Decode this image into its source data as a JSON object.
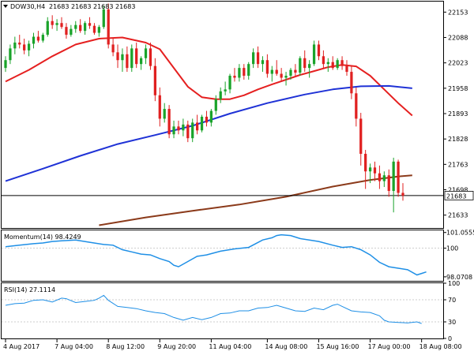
{
  "header": {
    "symbol_label": "DOW30,H4",
    "ohlc": "21683 21683 21683 21683"
  },
  "last_price_label": "21683",
  "colors": {
    "up_candle": "#1aa32a",
    "down_candle": "#e02020",
    "sma20": "#e52020",
    "sma100": "#1f32d6",
    "sma200": "#8b3a1a",
    "oscillator": "#1e8fe6",
    "grid": "#bdbdbd",
    "axis": "#000000",
    "price_line": "#000000",
    "background": "#ffffff"
  },
  "chart_data": [
    {
      "type": "candlestick",
      "panel": "price",
      "title": "DOW30,H4",
      "ylim": [
        21600,
        22180
      ],
      "yticks": [
        22153,
        22088,
        22023,
        21958,
        21893,
        21828,
        21763,
        21698,
        21633
      ],
      "last_price": 21683,
      "xticks": [
        {
          "label": "4 Aug 2017",
          "index": 0
        },
        {
          "label": "7 Aug 04:00",
          "index": 11
        },
        {
          "label": "8 Aug 12:00",
          "index": 22
        },
        {
          "label": "9 Aug 20:00",
          "index": 33
        },
        {
          "label": "11 Aug 04:00",
          "index": 44
        },
        {
          "label": "14 Aug 08:00",
          "index": 56
        },
        {
          "label": "15 Aug 16:00",
          "index": 67
        },
        {
          "label": "17 Aug 00:00",
          "index": 78
        },
        {
          "label": "18 Aug 08:00",
          "index": 89
        }
      ],
      "candles": [
        [
          22010,
          22040,
          22000,
          22030
        ],
        [
          22030,
          22070,
          22020,
          22060
        ],
        [
          22060,
          22090,
          22045,
          22075
        ],
        [
          22075,
          22095,
          22060,
          22070
        ],
        [
          22070,
          22085,
          22045,
          22055
        ],
        [
          22055,
          22080,
          22040,
          22072
        ],
        [
          22072,
          22100,
          22060,
          22090
        ],
        [
          22090,
          22105,
          22075,
          22080
        ],
        [
          22080,
          22100,
          22075,
          22095
        ],
        [
          22095,
          22140,
          22090,
          22130
        ],
        [
          22130,
          22145,
          22110,
          22120
        ],
        [
          22120,
          22135,
          22105,
          22125
        ],
        [
          22125,
          22140,
          22110,
          22115
        ],
        [
          22115,
          22125,
          22085,
          22095
        ],
        [
          22095,
          22120,
          22090,
          22110
        ],
        [
          22110,
          22130,
          22100,
          22120
        ],
        [
          22120,
          22135,
          22100,
          22105
        ],
        [
          22105,
          22130,
          22095,
          22125
        ],
        [
          22125,
          22140,
          22110,
          22118
        ],
        [
          22118,
          22125,
          22095,
          22100
        ],
        [
          22100,
          22120,
          22090,
          22115
        ],
        [
          22115,
          22170,
          22110,
          22160
        ],
        [
          22160,
          22175,
          22060,
          22070
        ],
        [
          22070,
          22085,
          22040,
          22050
        ],
        [
          22050,
          22070,
          22010,
          22030
        ],
        [
          22030,
          22060,
          22000,
          22045
        ],
        [
          22045,
          22065,
          22000,
          22010
        ],
        [
          22010,
          22070,
          22000,
          22060
        ],
        [
          22060,
          22075,
          22010,
          22020
        ],
        [
          22020,
          22040,
          22005,
          22035
        ],
        [
          22035,
          22070,
          22020,
          22060
        ],
        [
          22060,
          22075,
          22005,
          22015
        ],
        [
          22015,
          22035,
          21925,
          21940
        ],
        [
          21940,
          21960,
          21860,
          21880
        ],
        [
          21880,
          21920,
          21870,
          21905
        ],
        [
          21905,
          21915,
          21830,
          21840
        ],
        [
          21840,
          21875,
          21830,
          21860
        ],
        [
          21860,
          21875,
          21840,
          21850
        ],
        [
          21850,
          21880,
          21835,
          21865
        ],
        [
          21865,
          21875,
          21820,
          21830
        ],
        [
          21830,
          21880,
          21820,
          21870
        ],
        [
          21870,
          21890,
          21840,
          21850
        ],
        [
          21850,
          21890,
          21845,
          21885
        ],
        [
          21885,
          21900,
          21860,
          21870
        ],
        [
          21870,
          21905,
          21860,
          21900
        ],
        [
          21900,
          21940,
          21890,
          21930
        ],
        [
          21930,
          21960,
          21920,
          21950
        ],
        [
          21950,
          21975,
          21940,
          21955
        ],
        [
          21955,
          21995,
          21945,
          21990
        ],
        [
          21990,
          22010,
          21975,
          21985
        ],
        [
          21985,
          22020,
          21975,
          22010
        ],
        [
          22010,
          22020,
          21980,
          21990
        ],
        [
          21990,
          22025,
          21980,
          22020
        ],
        [
          22020,
          22060,
          22010,
          22050
        ],
        [
          22050,
          22065,
          22010,
          22020
        ],
        [
          22020,
          22040,
          22000,
          22030
        ],
        [
          22030,
          22045,
          21985,
          21995
        ],
        [
          21995,
          22015,
          21975,
          22005
        ],
        [
          22005,
          22030,
          21990,
          21995
        ],
        [
          21995,
          22010,
          21975,
          21985
        ],
        [
          21985,
          22000,
          21965,
          21990
        ],
        [
          21990,
          22010,
          21980,
          22005
        ],
        [
          22005,
          22020,
          21990,
          21998
        ],
        [
          21998,
          22040,
          21990,
          22035
        ],
        [
          22035,
          22055,
          22000,
          22010
        ],
        [
          22010,
          22030,
          21985,
          22020
        ],
        [
          22020,
          22080,
          22015,
          22070
        ],
        [
          22070,
          22080,
          22030,
          22040
        ],
        [
          22040,
          22055,
          22010,
          22020
        ],
        [
          22020,
          22035,
          22000,
          22025
        ],
        [
          22025,
          22040,
          22005,
          22010
        ],
        [
          22010,
          22035,
          22005,
          22030
        ],
        [
          22030,
          22040,
          22005,
          22015
        ],
        [
          22015,
          22030,
          21990,
          22000
        ],
        [
          22000,
          22015,
          21930,
          21945
        ],
        [
          21945,
          21960,
          21860,
          21880
        ],
        [
          21880,
          21895,
          21760,
          21790
        ],
        [
          21790,
          21800,
          21700,
          21745
        ],
        [
          21745,
          21765,
          21715,
          21755
        ],
        [
          21755,
          21770,
          21720,
          21740
        ],
        [
          21740,
          21760,
          21700,
          21720
        ],
        [
          21720,
          21745,
          21705,
          21735
        ],
        [
          21735,
          21750,
          21680,
          21695
        ],
        [
          21695,
          21780,
          21640,
          21770
        ],
        [
          21770,
          21775,
          21680,
          21690
        ],
        [
          21690,
          21715,
          21670,
          21683
        ]
      ],
      "indicators": [
        {
          "name": "SMA 20",
          "color_key": "sma20",
          "values": [
            [
              0,
              21975
            ],
            [
              5,
              22005
            ],
            [
              10,
              22040
            ],
            [
              15,
              22070
            ],
            [
              20,
              22085
            ],
            [
              25,
              22088
            ],
            [
              30,
              22075
            ],
            [
              33,
              22058
            ],
            [
              36,
              22010
            ],
            [
              39,
              21962
            ],
            [
              42,
              21935
            ],
            [
              45,
              21930
            ],
            [
              48,
              21930
            ],
            [
              51,
              21940
            ],
            [
              54,
              21955
            ],
            [
              57,
              21968
            ],
            [
              60,
              21980
            ],
            [
              63,
              21992
            ],
            [
              66,
              22002
            ],
            [
              69,
              22012
            ],
            [
              72,
              22018
            ],
            [
              75,
              22014
            ],
            [
              78,
              21990
            ],
            [
              81,
              21955
            ],
            [
              84,
              21920
            ],
            [
              87,
              21888
            ]
          ]
        },
        {
          "name": "SMA 100",
          "color_key": "sma100",
          "values": [
            [
              0,
              21720
            ],
            [
              8,
              21752
            ],
            [
              16,
              21785
            ],
            [
              24,
              21815
            ],
            [
              32,
              21838
            ],
            [
              40,
              21862
            ],
            [
              48,
              21893
            ],
            [
              56,
              21920
            ],
            [
              64,
              21942
            ],
            [
              70,
              21955
            ],
            [
              76,
              21963
            ],
            [
              82,
              21964
            ],
            [
              87,
              21958
            ]
          ]
        },
        {
          "name": "SMA 200",
          "color_key": "sma200",
          "values": [
            [
              20,
              21607
            ],
            [
              30,
              21627
            ],
            [
              40,
              21644
            ],
            [
              50,
              21660
            ],
            [
              60,
              21680
            ],
            [
              70,
              21706
            ],
            [
              78,
              21723
            ],
            [
              84,
              21732
            ],
            [
              87,
              21735
            ]
          ]
        }
      ]
    },
    {
      "type": "line",
      "panel": "momentum",
      "title": "Momentum(14) 98.4249",
      "ylim": [
        97.8,
        101.2
      ],
      "yticks": [
        101.0555,
        100,
        98.0708
      ],
      "reference_line": 100,
      "values": [
        [
          0,
          100.1
        ],
        [
          3,
          100.2
        ],
        [
          6,
          100.3
        ],
        [
          8,
          100.35
        ],
        [
          10,
          100.45
        ],
        [
          12,
          100.5
        ],
        [
          15,
          100.55
        ],
        [
          18,
          100.4
        ],
        [
          21,
          100.25
        ],
        [
          23,
          100.2
        ],
        [
          25,
          99.9
        ],
        [
          27,
          99.75
        ],
        [
          29,
          99.6
        ],
        [
          31,
          99.55
        ],
        [
          33,
          99.3
        ],
        [
          35,
          99.1
        ],
        [
          36,
          98.85
        ],
        [
          37,
          98.75
        ],
        [
          39,
          99.1
        ],
        [
          41,
          99.45
        ],
        [
          43,
          99.55
        ],
        [
          46,
          99.8
        ],
        [
          49,
          99.95
        ],
        [
          52,
          100.05
        ],
        [
          55,
          100.55
        ],
        [
          57,
          100.7
        ],
        [
          58,
          100.85
        ],
        [
          59,
          100.9
        ],
        [
          61,
          100.85
        ],
        [
          63,
          100.65
        ],
        [
          65,
          100.55
        ],
        [
          67,
          100.45
        ],
        [
          70,
          100.2
        ],
        [
          72,
          100.05
        ],
        [
          74,
          100.1
        ],
        [
          76,
          99.9
        ],
        [
          78,
          99.55
        ],
        [
          80,
          99.05
        ],
        [
          82,
          98.75
        ],
        [
          84,
          98.65
        ],
        [
          86,
          98.55
        ],
        [
          88,
          98.2
        ],
        [
          89,
          98.3
        ],
        [
          90,
          98.4
        ]
      ]
    },
    {
      "type": "line",
      "panel": "rsi",
      "title": "RSI(14) 27.1114",
      "ylim": [
        0,
        100
      ],
      "yticks": [
        100,
        70,
        30,
        0
      ],
      "reference_lines": [
        70,
        30
      ],
      "values": [
        [
          0,
          60
        ],
        [
          2,
          63
        ],
        [
          4,
          64
        ],
        [
          6,
          69
        ],
        [
          8,
          70
        ],
        [
          10,
          66
        ],
        [
          12,
          73
        ],
        [
          13,
          72
        ],
        [
          15,
          65
        ],
        [
          17,
          67
        ],
        [
          19,
          69
        ],
        [
          20,
          73
        ],
        [
          21,
          78
        ],
        [
          22,
          69
        ],
        [
          24,
          58
        ],
        [
          26,
          56
        ],
        [
          28,
          54
        ],
        [
          30,
          50
        ],
        [
          32,
          47
        ],
        [
          34,
          45
        ],
        [
          36,
          38
        ],
        [
          38,
          33
        ],
        [
          40,
          38
        ],
        [
          42,
          34
        ],
        [
          44,
          38
        ],
        [
          46,
          45
        ],
        [
          48,
          46
        ],
        [
          50,
          50
        ],
        [
          52,
          50
        ],
        [
          54,
          55
        ],
        [
          56,
          56
        ],
        [
          58,
          60
        ],
        [
          60,
          55
        ],
        [
          62,
          50
        ],
        [
          64,
          49
        ],
        [
          66,
          55
        ],
        [
          68,
          52
        ],
        [
          70,
          60
        ],
        [
          71,
          62
        ],
        [
          72,
          58
        ],
        [
          74,
          50
        ],
        [
          76,
          48
        ],
        [
          78,
          47
        ],
        [
          80,
          41
        ],
        [
          81,
          33
        ],
        [
          82,
          30
        ],
        [
          84,
          29
        ],
        [
          86,
          28
        ],
        [
          88,
          30
        ],
        [
          89,
          27
        ]
      ]
    }
  ]
}
